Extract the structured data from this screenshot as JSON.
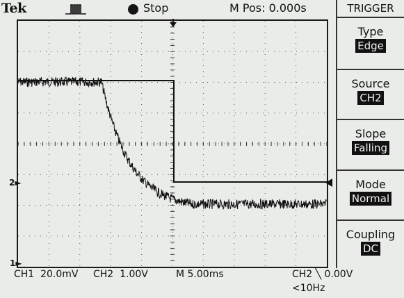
{
  "header": {
    "brand": "Tek",
    "acquisition_icon": "pulse-icon",
    "run_state": "Stop",
    "position": "M Pos: 0.000s"
  },
  "markers": {
    "ch2": "2",
    "ch1": "1"
  },
  "readouts": {
    "ch1": "CH1  20.0mV",
    "ch2": "CH2  1.00V",
    "timebase": "M 5.00ms",
    "trigger": "CH2 ╲ 0.00V",
    "frequency": "<10Hz"
  },
  "trigger_menu": {
    "title": "TRIGGER",
    "items": [
      {
        "label": "Type",
        "value": "Edge"
      },
      {
        "label": "Source",
        "value": "CH2"
      },
      {
        "label": "Slope",
        "value": "Falling"
      },
      {
        "label": "Mode",
        "value": "Normal"
      },
      {
        "label": "Coupling",
        "value": "DC"
      }
    ]
  },
  "colors": {
    "screen_bg": "#e9ece8",
    "trace": "#111111",
    "menu_value_bg": "#111111"
  }
}
